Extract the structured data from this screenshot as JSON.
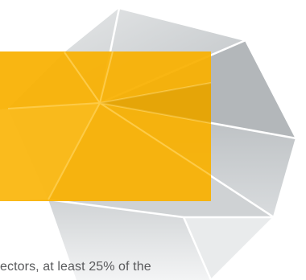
{
  "colors": {
    "background": "#ffffff",
    "accent_block": "#f9b000",
    "text": "#58595b",
    "polygon_light": "#eceeef",
    "polygon_mid": "#c9ccce",
    "polygon_dark": "#a7abae",
    "polygon_lines": "#ffffff"
  },
  "decoration": {
    "polygon_graphic": "faceted-heptagon-icon",
    "accent_block": "highlight-rectangle"
  },
  "body_text": "ectors, at least 25% of the"
}
